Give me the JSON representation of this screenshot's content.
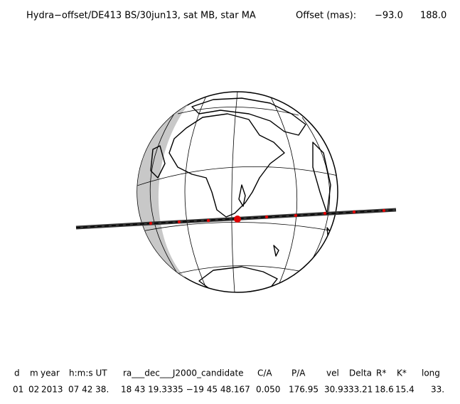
{
  "header": {
    "title": "Hydra−offset/DE413 BS/30jun13, sat MB, star MA",
    "offset_label": "Offset (mas):",
    "offset_values": [
      "−93.0",
      "188.0"
    ]
  },
  "table": {
    "columns": [
      "d",
      "m",
      "year",
      "h:m:s UT",
      "ra___dec___J2000_candidate",
      "C/A",
      "P/A",
      "vel",
      "Delta",
      "R*",
      "K*",
      "long"
    ],
    "rows": [
      [
        "01",
        "02",
        "2013",
        "07 42 38.",
        "18 43 19.3335 −19 45 48.167",
        "0.050",
        "176.95",
        "30.93",
        "33.21",
        "18.6",
        "15.4",
        "33."
      ]
    ]
  }
}
